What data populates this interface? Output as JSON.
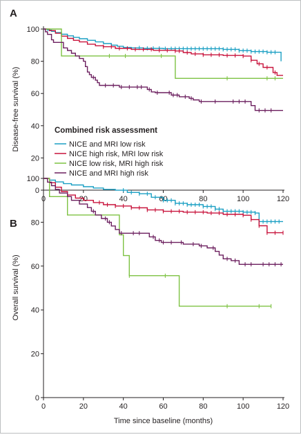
{
  "chart_data": [
    {
      "type": "line",
      "panel_label": "A",
      "title": "",
      "xlabel": "",
      "ylabel": "Disease-free survival (%)",
      "xlim": [
        0,
        120
      ],
      "ylim": [
        0,
        100
      ],
      "x_ticks": [
        0,
        20,
        40,
        60,
        80,
        100,
        120
      ],
      "y_ticks": [
        0,
        20,
        40,
        60,
        80,
        100
      ],
      "grid": false,
      "legend_position": "bottom-left",
      "legend_title": "Combined risk assessment",
      "series": [
        {
          "name": "NICE and MRI low risk",
          "color": "#1a9fc3",
          "points": [
            [
              0,
              100
            ],
            [
              2,
              99.3
            ],
            [
              4,
              98.6
            ],
            [
              6,
              97.8
            ],
            [
              9,
              96.8
            ],
            [
              12,
              95.8
            ],
            [
              15,
              94.8
            ],
            [
              18,
              94
            ],
            [
              22,
              93
            ],
            [
              26,
              92
            ],
            [
              30,
              91
            ],
            [
              34,
              90
            ],
            [
              37,
              89.3
            ],
            [
              40,
              88.6
            ],
            [
              44,
              88.3
            ],
            [
              50,
              88
            ],
            [
              60,
              87.8
            ],
            [
              75,
              87.8
            ],
            [
              90,
              87.4
            ],
            [
              98,
              86.6
            ],
            [
              104,
              86
            ],
            [
              112,
              85.6
            ],
            [
              117,
              85.6
            ],
            [
              119,
              80
            ]
          ],
          "censor_x": [
            48,
            52,
            55,
            58,
            61,
            64,
            66,
            68,
            70,
            72,
            74,
            76,
            78,
            80,
            82,
            84,
            86,
            88,
            90,
            92,
            94,
            96,
            98,
            100,
            102,
            104,
            106,
            108,
            110,
            112,
            114,
            116
          ]
        },
        {
          "name": "NICE high risk, MRI low risk",
          "color": "#c8123b",
          "points": [
            [
              0,
              100
            ],
            [
              3,
              99
            ],
            [
              6,
              97.4
            ],
            [
              9,
              95.6
            ],
            [
              12,
              94.2
            ],
            [
              15,
              93
            ],
            [
              18,
              92
            ],
            [
              22,
              90.6
            ],
            [
              26,
              89.6
            ],
            [
              30,
              89
            ],
            [
              36,
              88
            ],
            [
              44,
              87.4
            ],
            [
              55,
              86.8
            ],
            [
              66,
              86.4
            ],
            [
              70,
              85.4
            ],
            [
              74,
              84.6
            ],
            [
              80,
              84
            ],
            [
              90,
              83.6
            ],
            [
              100,
              83.2
            ],
            [
              104,
              80.6
            ],
            [
              107,
              78.4
            ],
            [
              110,
              76.2
            ],
            [
              115,
              73
            ],
            [
              117,
              71.2
            ],
            [
              120,
              71.2
            ]
          ],
          "censor_x": [
            30,
            34,
            38,
            42,
            46,
            50,
            54,
            58,
            62,
            66,
            68,
            72,
            76,
            80,
            84,
            88,
            92,
            96,
            100,
            104,
            108,
            112,
            116
          ]
        },
        {
          "name": "NICE low risk, MRI high risk",
          "color": "#7dc242",
          "points": [
            [
              0,
              100
            ],
            [
              8,
              100
            ],
            [
              9,
              83.3
            ],
            [
              66,
              83.3
            ],
            [
              66,
              69.4
            ],
            [
              120,
              69.4
            ]
          ],
          "censor_x": [
            33,
            41,
            59,
            92,
            112,
            116
          ]
        },
        {
          "name": "NICE and MRI high risk",
          "color": "#6b1e5e",
          "points": [
            [
              0,
              100
            ],
            [
              1,
              98.3
            ],
            [
              2,
              96.7
            ],
            [
              4,
              93.3
            ],
            [
              5,
              91.7
            ],
            [
              10,
              91.7
            ],
            [
              10,
              88.3
            ],
            [
              12,
              86.7
            ],
            [
              14,
              85
            ],
            [
              16,
              83.3
            ],
            [
              18,
              81.7
            ],
            [
              20,
              80
            ],
            [
              21,
              76.7
            ],
            [
              22,
              73.3
            ],
            [
              23,
              71.7
            ],
            [
              24,
              70
            ],
            [
              26,
              68.3
            ],
            [
              27,
              66.7
            ],
            [
              28,
              65
            ],
            [
              38,
              65
            ],
            [
              38,
              64
            ],
            [
              50,
              64
            ],
            [
              52,
              62.5
            ],
            [
              54,
              61
            ],
            [
              56,
              60.5
            ],
            [
              62,
              60.5
            ],
            [
              64,
              59
            ],
            [
              68,
              58
            ],
            [
              73,
              57
            ],
            [
              75,
              56
            ],
            [
              78,
              55
            ],
            [
              102,
              55
            ],
            [
              104,
              52.5
            ],
            [
              106,
              49.5
            ],
            [
              120,
              49.5
            ]
          ],
          "censor_x": [
            25,
            31,
            35,
            39,
            43,
            47,
            49,
            53,
            57,
            63,
            65,
            67,
            71,
            74,
            79,
            86,
            95,
            98,
            101,
            108,
            111,
            114
          ]
        }
      ]
    },
    {
      "type": "line",
      "panel_label": "B",
      "title": "",
      "xlabel": "Time since baseline (months)",
      "ylabel": "Overall survival (%)",
      "xlim": [
        0,
        120
      ],
      "ylim": [
        0,
        100
      ],
      "x_ticks": [
        0,
        20,
        40,
        60,
        80,
        100,
        120
      ],
      "y_ticks": [
        0,
        20,
        40,
        60,
        80,
        100
      ],
      "grid": false,
      "series": [
        {
          "name": "NICE and MRI low risk",
          "color": "#1a9fc3",
          "points": [
            [
              0,
              100
            ],
            [
              3,
              99.2
            ],
            [
              6,
              98.4
            ],
            [
              10,
              97.6
            ],
            [
              14,
              97
            ],
            [
              20,
              96.2
            ],
            [
              25,
              95.6
            ],
            [
              30,
              95
            ],
            [
              36,
              94.6
            ],
            [
              42,
              93.6
            ],
            [
              48,
              93
            ],
            [
              54,
              91.4
            ],
            [
              60,
              90
            ],
            [
              66,
              88.6
            ],
            [
              72,
              88
            ],
            [
              80,
              87.2
            ],
            [
              86,
              86
            ],
            [
              90,
              85
            ],
            [
              100,
              84.6
            ],
            [
              106,
              84.2
            ],
            [
              108,
              80.3
            ],
            [
              120,
              80.3
            ]
          ],
          "censor_x": [
            40,
            44,
            48,
            52,
            56,
            60,
            62,
            64,
            66,
            68,
            70,
            72,
            74,
            76,
            78,
            80,
            82,
            84,
            86,
            88,
            90,
            92,
            94,
            96,
            98,
            100,
            102,
            104,
            106,
            108,
            110,
            112,
            114,
            116,
            118
          ]
        },
        {
          "name": "NICE high risk, MRI low risk",
          "color": "#c8123b",
          "points": [
            [
              0,
              100
            ],
            [
              3,
              98
            ],
            [
              6,
              96
            ],
            [
              9,
              94
            ],
            [
              12,
              92.4
            ],
            [
              16,
              91
            ],
            [
              20,
              90
            ],
            [
              25,
              89
            ],
            [
              30,
              88
            ],
            [
              36,
              87.4
            ],
            [
              44,
              86.6
            ],
            [
              52,
              85.6
            ],
            [
              60,
              85
            ],
            [
              70,
              84.6
            ],
            [
              82,
              84.2
            ],
            [
              90,
              83.6
            ],
            [
              100,
              83.2
            ],
            [
              104,
              81.2
            ],
            [
              108,
              78.4
            ],
            [
              112,
              75.2
            ],
            [
              120,
              75.2
            ]
          ],
          "censor_x": [
            28,
            32,
            36,
            40,
            44,
            48,
            52,
            56,
            60,
            64,
            68,
            72,
            76,
            80,
            84,
            88,
            92,
            96,
            100,
            104,
            108,
            112,
            116,
            120
          ]
        },
        {
          "name": "NICE low risk, MRI high risk",
          "color": "#7dc242",
          "points": [
            [
              0,
              100
            ],
            [
              2,
              100
            ],
            [
              3,
              91.7
            ],
            [
              12,
              91.7
            ],
            [
              12,
              83.3
            ],
            [
              37,
              83.3
            ],
            [
              38,
              74.3
            ],
            [
              40,
              64.8
            ],
            [
              43,
              55.6
            ],
            [
              68,
              55.6
            ],
            [
              68,
              41.7
            ],
            [
              114,
              41.7
            ]
          ],
          "censor_x": [
            43,
            61,
            92,
            108,
            114
          ]
        },
        {
          "name": "NICE and MRI high risk",
          "color": "#6b1e5e",
          "points": [
            [
              0,
              100
            ],
            [
              2,
              98.3
            ],
            [
              4,
              96.7
            ],
            [
              6,
              95
            ],
            [
              8,
              93.3
            ],
            [
              12,
              91.7
            ],
            [
              14,
              90
            ],
            [
              18,
              88.3
            ],
            [
              22,
              86.7
            ],
            [
              24,
              85
            ],
            [
              26,
              83.3
            ],
            [
              29,
              81.7
            ],
            [
              32,
              80
            ],
            [
              34,
              78.3
            ],
            [
              36,
              76.7
            ],
            [
              38,
              75
            ],
            [
              50,
              75
            ],
            [
              53,
              73.3
            ],
            [
              56,
              71.7
            ],
            [
              59,
              70.8
            ],
            [
              66,
              70.8
            ],
            [
              70,
              70
            ],
            [
              78,
              69.2
            ],
            [
              82,
              68.3
            ],
            [
              86,
              66.7
            ],
            [
              88,
              65
            ],
            [
              90,
              63.3
            ],
            [
              94,
              62.5
            ],
            [
              98,
              60.8
            ],
            [
              120,
              60.8
            ]
          ],
          "censor_x": [
            25,
            31,
            33,
            39,
            45,
            48,
            55,
            58,
            60,
            64,
            69,
            75,
            79,
            85,
            92,
            96,
            101,
            104,
            110,
            113,
            116,
            119
          ]
        }
      ]
    }
  ]
}
